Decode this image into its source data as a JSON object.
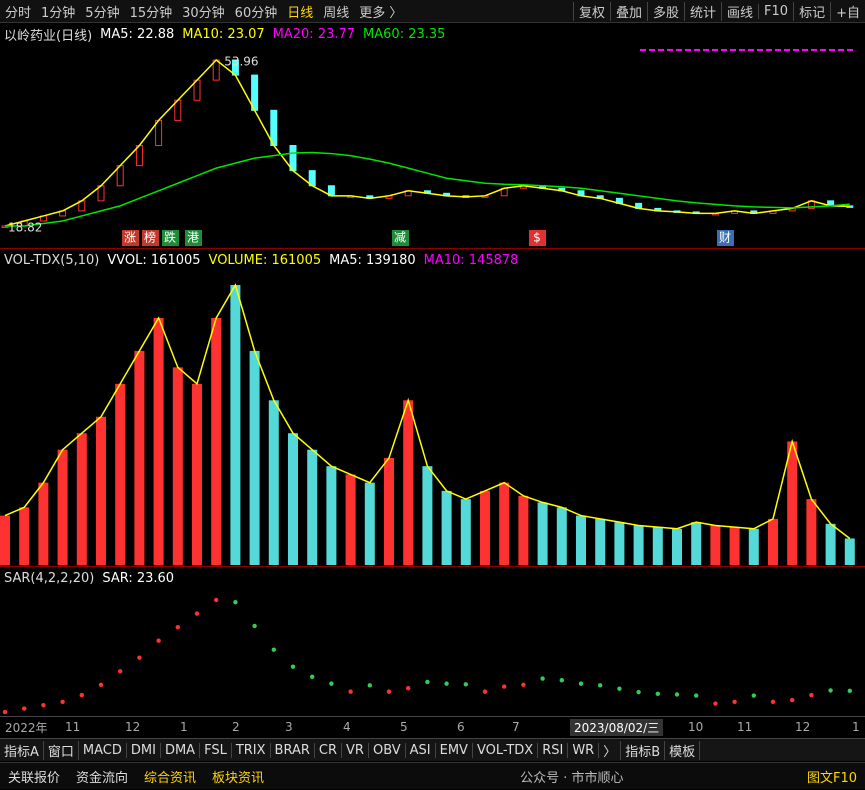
{
  "toolbar": {
    "items": [
      "分时",
      "1分钟",
      "5分钟",
      "15分钟",
      "30分钟",
      "60分钟",
      "日线",
      "周线",
      "更多 〉"
    ],
    "right": [
      "复权",
      "叠加",
      "多股",
      "统计",
      "画线",
      "F10",
      "标记",
      "+自"
    ]
  },
  "price_panel": {
    "title": "以岭药业(日线)",
    "indicators": [
      {
        "label": "MA5: 22.88",
        "color": "#ffffff"
      },
      {
        "label": "MA10: 23.07",
        "color": "#ffff00"
      },
      {
        "label": "MA20: 23.77",
        "color": "#ff00ff"
      },
      {
        "label": "MA60: 23.35",
        "color": "#00e600"
      }
    ],
    "high_label": "53.96",
    "low_label": "18.82",
    "events": [
      {
        "label": "涨",
        "color": "#c0392b"
      },
      {
        "label": "榜",
        "color": "#c0392b"
      },
      {
        "label": "跌",
        "color": "#1e8c3a"
      },
      {
        "label": "港",
        "color": "#1e8c3a"
      },
      {
        "label": "减",
        "color": "#1e8c3a"
      },
      {
        "label": "$",
        "color": "#e03030"
      },
      {
        "label": "财",
        "color": "#3b6fb5"
      }
    ],
    "close": [
      19,
      20,
      21,
      22,
      24,
      27,
      31,
      35,
      40,
      44,
      48,
      52,
      49,
      42,
      35,
      30,
      27,
      25,
      25,
      24.5,
      25,
      26,
      25.5,
      25,
      24.8,
      25,
      26.5,
      27,
      26.5,
      26,
      25,
      24.5,
      23.5,
      22.5,
      22,
      21.8,
      21.5,
      21.5,
      22,
      21.5,
      22,
      22.5,
      24,
      23,
      22.9
    ],
    "ma60": [
      19,
      19,
      19.5,
      20,
      21,
      22,
      23,
      24.5,
      26,
      27.5,
      29,
      30.5,
      31.5,
      32.5,
      33,
      33.5,
      33.6,
      33.4,
      33,
      32.3,
      31.5,
      30.5,
      29.5,
      28.5,
      28,
      27.5,
      27.3,
      27.2,
      27,
      26.8,
      26.5,
      26,
      25.5,
      25,
      24.5,
      24,
      23.6,
      23.3,
      23,
      22.8,
      22.7,
      22.6,
      22.8,
      23,
      23.35
    ]
  },
  "volume_panel": {
    "indicators": [
      {
        "label": "VOL-TDX(5,10)",
        "color": "#dddddd"
      },
      {
        "label": "VVOL: 161005",
        "color": "#ffffff"
      },
      {
        "label": "VOLUME: 161005",
        "color": "#ffff00"
      },
      {
        "label": "MA5: 139180",
        "color": "#ffffff"
      },
      {
        "label": "MA10: 145878",
        "color": "#ff00ff"
      }
    ],
    "values": [
      300000,
      350000,
      500000,
      700000,
      800000,
      900000,
      1100000,
      1300000,
      1500000,
      1200000,
      1100000,
      1500000,
      1700000,
      1300000,
      1000000,
      800000,
      700000,
      600000,
      550000,
      500000,
      650000,
      1000000,
      600000,
      450000,
      400000,
      450000,
      500000,
      420000,
      380000,
      350000,
      300000,
      280000,
      260000,
      240000,
      230000,
      220000,
      260000,
      240000,
      230000,
      220000,
      280000,
      750000,
      400000,
      250000,
      161005
    ]
  },
  "sar_panel": {
    "indicators": [
      {
        "label": "SAR(4,2,2,20)",
        "color": "#dddddd"
      },
      {
        "label": "SAR: 23.60",
        "color": "#ffffff"
      }
    ]
  },
  "date_axis": [
    "2022年",
    "11",
    "12",
    "1",
    "2",
    "3",
    "4",
    "5",
    "6",
    "7",
    "2023/08/02/三",
    "10",
    "11",
    "12",
    "1"
  ],
  "tabs": [
    "指标A",
    "窗口",
    "MACD",
    "DMI",
    "DMA",
    "FSL",
    "TRIX",
    "BRAR",
    "CR",
    "VR",
    "OBV",
    "ASI",
    "EMV",
    "VOL-TDX",
    "RSI",
    "WR",
    "〉",
    "指标B",
    "模板"
  ],
  "bottom_bar": {
    "items": [
      "关联报价",
      "资金流向",
      "综合资讯",
      "板块资讯"
    ],
    "right": "图文F10",
    "watermark": "公众号 · 市市顺心"
  }
}
